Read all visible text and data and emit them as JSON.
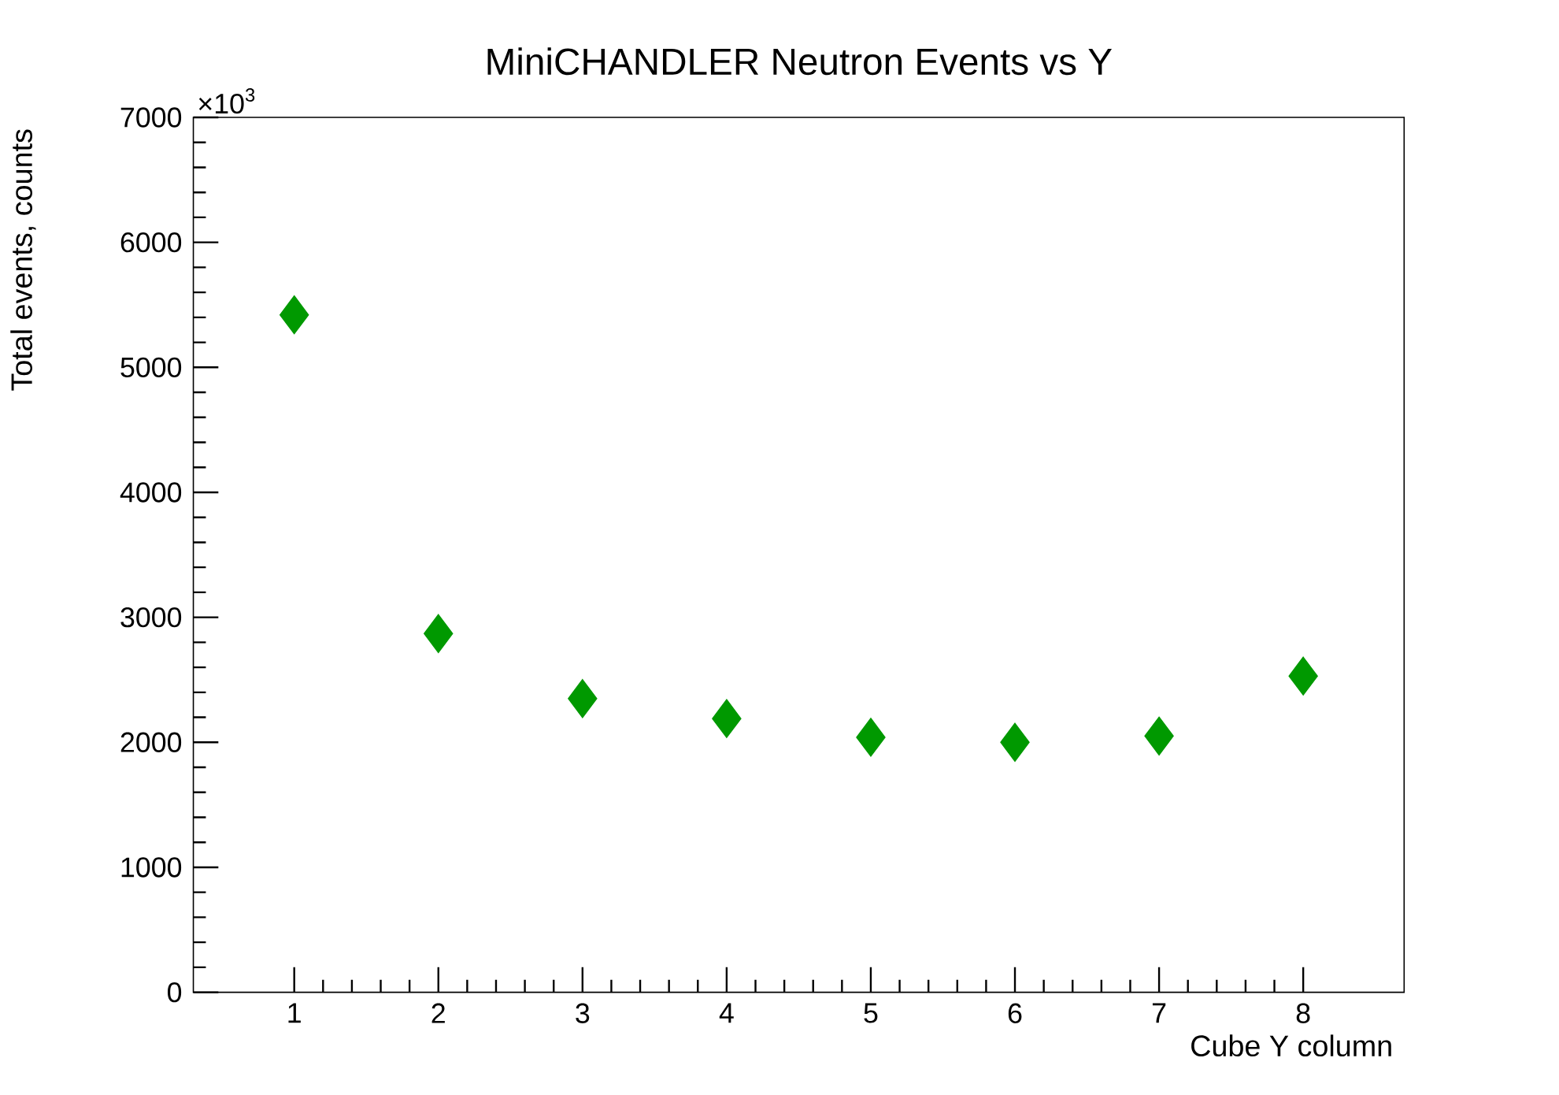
{
  "chart_data": {
    "type": "scatter",
    "title": "MiniCHANDLER Neutron Events vs Y",
    "xlabel": "Cube Y column",
    "ylabel": "Total events, counts",
    "annotations": [
      "×10$^{3}$"
    ],
    "x": [
      1,
      2,
      3,
      4,
      5,
      6,
      7,
      8
    ],
    "series": [
      {
        "color": "#009900",
        "values": [
          5420,
          2870,
          2350,
          2190,
          2040,
          2000,
          2050,
          2530
        ]
      }
    ],
    "marker": "diamond",
    "xlim": [
      0.3,
      8.7
    ],
    "xticks": [
      1,
      2,
      3,
      4,
      5,
      6,
      7,
      8
    ],
    "ylim": [
      0,
      7000
    ],
    "yticks": [
      0,
      1000,
      2000,
      3000,
      4000,
      5000,
      6000,
      7000
    ]
  }
}
